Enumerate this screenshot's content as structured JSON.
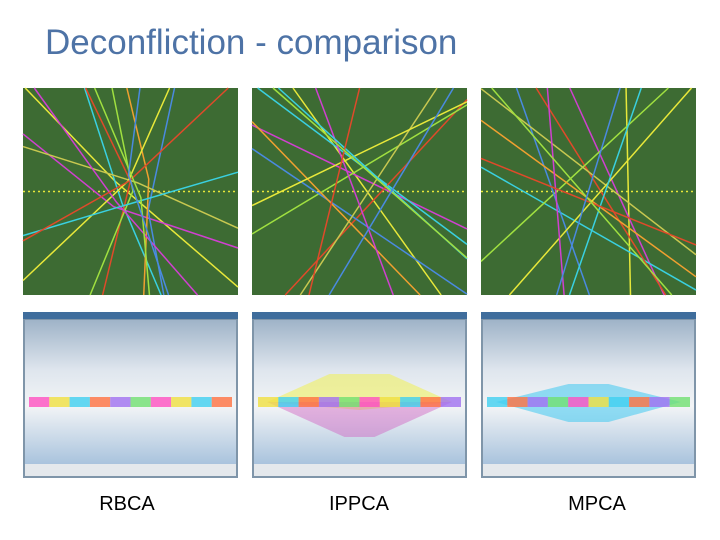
{
  "slide": {
    "title": "Deconfliction - comparison",
    "panels": [
      {
        "caption": "RBCA"
      },
      {
        "caption": "IPPCA"
      },
      {
        "caption": "MPCA"
      }
    ]
  }
}
